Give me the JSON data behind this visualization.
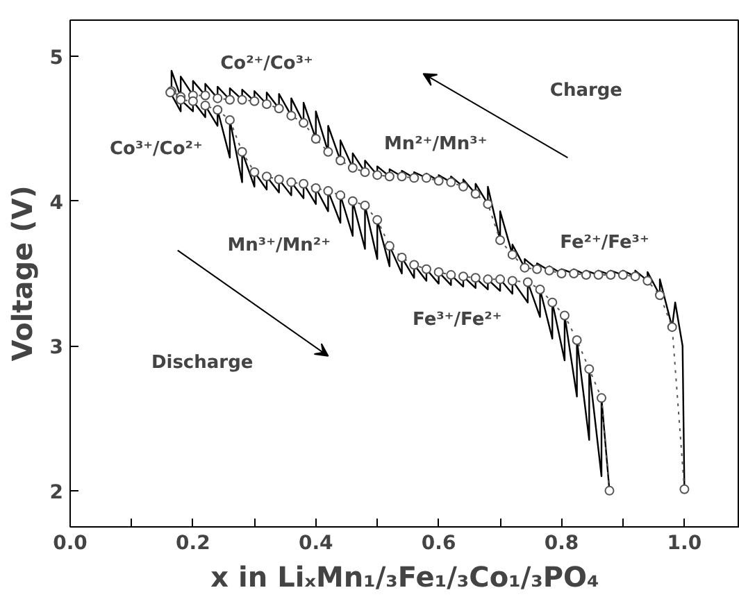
{
  "chart_data": {
    "type": "line",
    "xlabel": "x in LiₓMn₁/₃Fe₁/₃Co₁/₃PO₄",
    "ylabel": "Voltage (V)",
    "xlim": [
      0,
      1.09
    ],
    "ylim": [
      1.75,
      5.25
    ],
    "xticks": [
      {
        "value": 0,
        "label": "0.0"
      },
      {
        "value": 0.1,
        "label": null
      },
      0.2,
      {
        "value": 0.3,
        "label": null
      },
      0.4,
      {
        "value": 0.5,
        "label": null
      },
      0.6,
      {
        "value": 0.7,
        "label": null
      },
      0.8,
      {
        "value": 0.9,
        "label": null
      },
      {
        "value": 1.0,
        "label": "1.0"
      }
    ],
    "yticks": [
      2,
      3,
      4,
      5
    ],
    "grid": false,
    "series": [
      {
        "color": "#000000",
        "marker": "none",
        "line_style": "solid",
        "x": [
          1.0,
          0.997,
          0.985,
          0.98,
          0.96,
          0.96,
          0.94,
          0.94,
          0.92,
          0.92,
          0.9,
          0.9,
          0.88,
          0.88,
          0.86,
          0.86,
          0.84,
          0.84,
          0.82,
          0.82,
          0.8,
          0.8,
          0.78,
          0.78,
          0.76,
          0.76,
          0.74,
          0.74,
          0.72,
          0.72,
          0.7,
          0.7,
          0.68,
          0.68,
          0.66,
          0.66,
          0.64,
          0.64,
          0.62,
          0.62,
          0.6,
          0.6,
          0.58,
          0.58,
          0.56,
          0.56,
          0.54,
          0.54,
          0.52,
          0.52,
          0.5,
          0.5,
          0.48,
          0.48,
          0.46,
          0.46,
          0.44,
          0.44,
          0.42,
          0.42,
          0.4,
          0.4,
          0.38,
          0.38,
          0.36,
          0.36,
          0.34,
          0.34,
          0.32,
          0.32,
          0.3,
          0.3,
          0.28,
          0.28,
          0.26,
          0.26,
          0.24,
          0.24,
          0.22,
          0.22,
          0.2,
          0.2,
          0.18,
          0.18,
          0.165,
          0.165
        ],
        "values": [
          2.01,
          3.0,
          3.3,
          3.13,
          3.46,
          3.35,
          3.51,
          3.45,
          3.52,
          3.48,
          3.52,
          3.49,
          3.52,
          3.49,
          3.52,
          3.49,
          3.52,
          3.49,
          3.53,
          3.5,
          3.53,
          3.5,
          3.55,
          3.52,
          3.57,
          3.53,
          3.6,
          3.54,
          3.7,
          3.63,
          3.93,
          3.73,
          4.1,
          3.98,
          4.12,
          4.05,
          4.15,
          4.1,
          4.17,
          4.13,
          4.18,
          4.14,
          4.19,
          4.16,
          4.2,
          4.16,
          4.21,
          4.17,
          4.22,
          4.17,
          4.24,
          4.18,
          4.28,
          4.2,
          4.33,
          4.23,
          4.42,
          4.28,
          4.52,
          4.34,
          4.62,
          4.43,
          4.68,
          4.54,
          4.71,
          4.59,
          4.74,
          4.64,
          4.75,
          4.67,
          4.76,
          4.69,
          4.77,
          4.7,
          4.78,
          4.7,
          4.79,
          4.71,
          4.81,
          4.73,
          4.83,
          4.73,
          4.86,
          4.72,
          4.9,
          4.76
        ]
      },
      {
        "color": "#000000",
        "marker": "none",
        "line_style": "solid",
        "x": [
          0.163,
          0.18,
          0.18,
          0.2,
          0.2,
          0.22,
          0.22,
          0.24,
          0.24,
          0.26,
          0.26,
          0.28,
          0.28,
          0.3,
          0.3,
          0.32,
          0.32,
          0.34,
          0.34,
          0.36,
          0.36,
          0.38,
          0.38,
          0.4,
          0.4,
          0.42,
          0.42,
          0.44,
          0.44,
          0.46,
          0.46,
          0.48,
          0.48,
          0.5,
          0.5,
          0.52,
          0.52,
          0.54,
          0.54,
          0.56,
          0.56,
          0.58,
          0.58,
          0.6,
          0.6,
          0.62,
          0.62,
          0.64,
          0.64,
          0.66,
          0.66,
          0.68,
          0.68,
          0.7,
          0.7,
          0.72,
          0.72,
          0.745,
          0.745,
          0.765,
          0.765,
          0.785,
          0.785,
          0.805,
          0.805,
          0.825,
          0.825,
          0.845,
          0.845,
          0.865,
          0.865,
          0.878
        ],
        "values": [
          4.75,
          4.62,
          4.7,
          4.62,
          4.69,
          4.58,
          4.66,
          4.52,
          4.63,
          4.3,
          4.56,
          4.13,
          4.34,
          4.1,
          4.2,
          4.08,
          4.17,
          4.06,
          4.15,
          4.04,
          4.13,
          4.02,
          4.12,
          3.98,
          4.09,
          3.93,
          4.07,
          3.85,
          4.04,
          3.76,
          4.0,
          3.67,
          3.97,
          3.6,
          3.87,
          3.55,
          3.69,
          3.5,
          3.61,
          3.47,
          3.56,
          3.45,
          3.53,
          3.43,
          3.51,
          3.42,
          3.49,
          3.41,
          3.48,
          3.4,
          3.47,
          3.39,
          3.46,
          3.38,
          3.46,
          3.36,
          3.45,
          3.3,
          3.44,
          3.2,
          3.39,
          3.05,
          3.3,
          2.9,
          3.21,
          2.65,
          3.04,
          2.35,
          2.84,
          2.1,
          2.64,
          2.0
        ]
      },
      {
        "color": "#555555",
        "marker": "circle",
        "line_style": "dotted",
        "x": [
          1.0,
          0.98,
          0.96,
          0.94,
          0.92,
          0.9,
          0.88,
          0.86,
          0.84,
          0.82,
          0.8,
          0.78,
          0.76,
          0.74,
          0.72,
          0.7,
          0.68,
          0.66,
          0.64,
          0.62,
          0.6,
          0.58,
          0.56,
          0.54,
          0.52,
          0.5,
          0.48,
          0.46,
          0.44,
          0.42,
          0.4,
          0.38,
          0.36,
          0.34,
          0.32,
          0.3,
          0.28,
          0.26,
          0.24,
          0.22,
          0.2,
          0.18,
          0.165
        ],
        "values": [
          2.01,
          3.13,
          3.35,
          3.45,
          3.48,
          3.49,
          3.49,
          3.49,
          3.49,
          3.5,
          3.5,
          3.52,
          3.53,
          3.54,
          3.63,
          3.73,
          3.98,
          4.05,
          4.1,
          4.13,
          4.14,
          4.16,
          4.16,
          4.17,
          4.17,
          4.18,
          4.2,
          4.23,
          4.28,
          4.34,
          4.43,
          4.54,
          4.59,
          4.64,
          4.67,
          4.69,
          4.7,
          4.7,
          4.71,
          4.73,
          4.73,
          4.72,
          4.76
        ]
      },
      {
        "color": "#555555",
        "marker": "circle",
        "line_style": "dotted",
        "x": [
          0.163,
          0.18,
          0.2,
          0.22,
          0.24,
          0.26,
          0.28,
          0.3,
          0.32,
          0.34,
          0.36,
          0.38,
          0.4,
          0.42,
          0.44,
          0.46,
          0.48,
          0.5,
          0.52,
          0.54,
          0.56,
          0.58,
          0.6,
          0.62,
          0.64,
          0.66,
          0.68,
          0.7,
          0.72,
          0.745,
          0.765,
          0.785,
          0.805,
          0.825,
          0.845,
          0.865,
          0.878
        ],
        "values": [
          4.75,
          4.7,
          4.69,
          4.66,
          4.63,
          4.56,
          4.34,
          4.2,
          4.17,
          4.15,
          4.13,
          4.12,
          4.09,
          4.07,
          4.04,
          4.0,
          3.97,
          3.87,
          3.69,
          3.61,
          3.56,
          3.53,
          3.51,
          3.49,
          3.48,
          3.47,
          3.46,
          3.46,
          3.45,
          3.44,
          3.39,
          3.3,
          3.21,
          3.04,
          2.84,
          2.64,
          2.0
        ]
      }
    ],
    "annotations": [
      "Co²⁺/Co³⁺",
      "Co³⁺/Co²⁺",
      "Mn²⁺/Mn³⁺",
      "Mn³⁺/Mn²⁺",
      "Fe²⁺/Fe³⁺",
      "Fe³⁺/Fe²⁺",
      "Charge",
      "Discharge"
    ]
  }
}
